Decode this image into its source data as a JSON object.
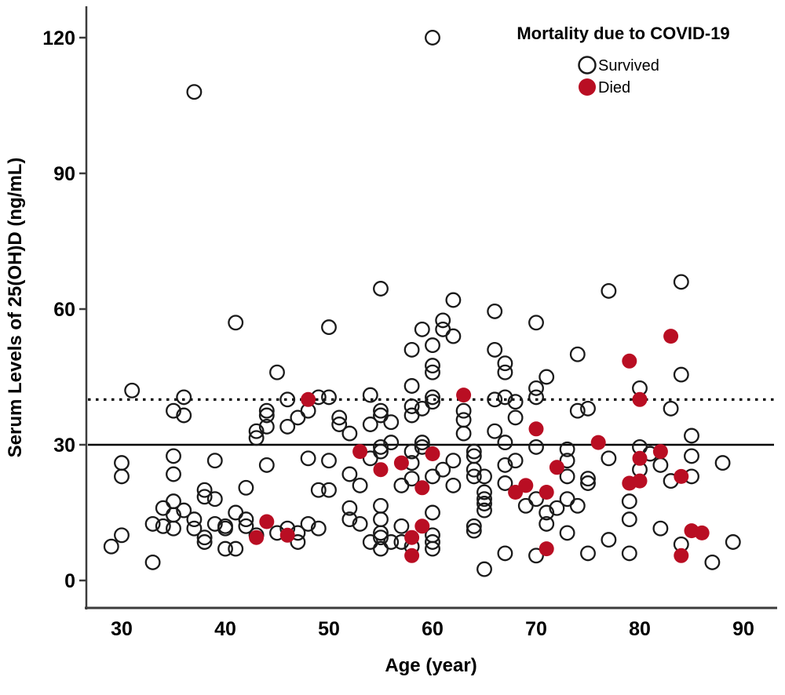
{
  "colors": {
    "died_fill": "#b90e23",
    "point_stroke": "#1a1a1a",
    "axis_line": "#3c3c3c",
    "background": "#ffffff"
  },
  "chart_data": {
    "type": "scatter",
    "title": "",
    "xlabel": "Age (year)",
    "ylabel": "Serum Levels of 25(OH)D (ng/mL)",
    "xlim": [
      27,
      93
    ],
    "ylim": [
      -6,
      126
    ],
    "x_ticks": [
      30,
      40,
      50,
      60,
      70,
      80,
      90
    ],
    "y_ticks": [
      0,
      30,
      60,
      90,
      120
    ],
    "grid": false,
    "legend": {
      "position": "top-right",
      "title": "Mortality due to COVID-19",
      "entries": [
        {
          "label": "Survived",
          "marker": "open-circle"
        },
        {
          "label": "Died",
          "marker": "filled-circle",
          "color": "#b90e23"
        }
      ]
    },
    "reference_lines": [
      {
        "value": 30,
        "style": "solid"
      },
      {
        "value": 40,
        "style": "dotted"
      }
    ],
    "series": [
      {
        "name": "Survived",
        "marker": "open-circle",
        "points": [
          [
            60,
            120
          ],
          [
            37,
            108
          ],
          [
            41,
            57
          ],
          [
            45,
            46
          ],
          [
            55,
            64.5
          ],
          [
            62,
            62
          ],
          [
            66,
            59.5
          ],
          [
            50,
            56
          ],
          [
            70,
            57
          ],
          [
            61,
            57.5
          ],
          [
            61,
            55.5
          ],
          [
            59,
            55.5
          ],
          [
            62,
            54
          ],
          [
            58,
            51
          ],
          [
            60,
            52
          ],
          [
            66,
            51
          ],
          [
            60,
            47.5
          ],
          [
            60,
            46
          ],
          [
            67,
            48
          ],
          [
            67,
            46
          ],
          [
            77,
            64
          ],
          [
            84,
            66
          ],
          [
            74,
            50
          ],
          [
            84,
            45.5
          ],
          [
            71,
            45
          ],
          [
            31,
            42
          ],
          [
            36,
            40.5
          ],
          [
            35,
            37.5
          ],
          [
            36,
            36.5
          ],
          [
            44,
            37.5
          ],
          [
            44,
            36.5
          ],
          [
            44,
            34
          ],
          [
            43,
            33
          ],
          [
            43,
            31.5
          ],
          [
            46,
            40
          ],
          [
            46,
            34
          ],
          [
            47,
            36
          ],
          [
            48,
            37.5
          ],
          [
            49,
            40.5
          ],
          [
            50,
            40.5
          ],
          [
            54,
            41
          ],
          [
            58,
            43
          ],
          [
            60,
            40.5
          ],
          [
            60,
            39.5
          ],
          [
            66,
            40
          ],
          [
            67,
            40.5
          ],
          [
            68,
            39.5
          ],
          [
            70,
            42.5
          ],
          [
            70,
            40.5
          ],
          [
            80,
            42.5
          ],
          [
            58,
            38.5
          ],
          [
            59,
            38
          ],
          [
            55,
            37.5
          ],
          [
            55,
            36.5
          ],
          [
            56,
            35
          ],
          [
            51,
            36
          ],
          [
            51,
            34.5
          ],
          [
            54,
            34.5
          ],
          [
            52,
            32.5
          ],
          [
            58,
            36.5
          ],
          [
            63,
            37.5
          ],
          [
            63,
            35.5
          ],
          [
            63,
            32.5
          ],
          [
            66,
            33
          ],
          [
            68,
            36
          ],
          [
            74,
            37.5
          ],
          [
            75,
            38
          ],
          [
            83,
            38
          ],
          [
            85,
            32
          ],
          [
            56,
            30.5
          ],
          [
            59,
            30.5
          ],
          [
            67,
            30.5
          ],
          [
            30,
            26
          ],
          [
            30,
            23
          ],
          [
            35,
            27.5
          ],
          [
            35,
            23.5
          ],
          [
            39,
            26.5
          ],
          [
            44,
            25.5
          ],
          [
            48,
            27
          ],
          [
            55,
            29.5
          ],
          [
            54,
            27
          ],
          [
            55,
            28.5
          ],
          [
            58,
            28.5
          ],
          [
            59,
            29.5
          ],
          [
            64,
            28.5
          ],
          [
            64,
            27.5
          ],
          [
            70,
            29.5
          ],
          [
            64,
            24.5
          ],
          [
            64,
            23
          ],
          [
            58,
            26
          ],
          [
            62,
            26.5
          ],
          [
            65,
            23
          ],
          [
            67,
            25.5
          ],
          [
            68,
            26.5
          ],
          [
            50,
            26.5
          ],
          [
            52,
            23.5
          ],
          [
            61,
            24.5
          ],
          [
            58,
            22.5
          ],
          [
            60,
            23
          ],
          [
            80,
            29.5
          ],
          [
            73,
            29
          ],
          [
            73,
            26.5
          ],
          [
            77,
            27
          ],
          [
            81,
            28
          ],
          [
            85,
            27.5
          ],
          [
            88,
            26
          ],
          [
            82,
            25.5
          ],
          [
            80,
            24.5
          ],
          [
            73,
            23
          ],
          [
            75,
            22.5
          ],
          [
            75,
            21.5
          ],
          [
            83,
            22
          ],
          [
            85,
            23
          ],
          [
            53,
            21
          ],
          [
            57,
            21
          ],
          [
            62,
            21
          ],
          [
            50,
            20
          ],
          [
            49,
            20
          ],
          [
            38,
            20
          ],
          [
            38,
            18.5
          ],
          [
            42,
            20.5
          ],
          [
            39,
            18
          ],
          [
            35,
            17.5
          ],
          [
            34,
            16
          ],
          [
            35,
            14.5
          ],
          [
            36,
            15.5
          ],
          [
            41,
            15
          ],
          [
            67,
            21.5
          ],
          [
            65,
            19.5
          ],
          [
            65,
            18
          ],
          [
            65,
            17
          ],
          [
            65,
            15.5
          ],
          [
            70,
            18
          ],
          [
            69,
            16.5
          ],
          [
            52,
            16
          ],
          [
            55,
            16.5
          ],
          [
            60,
            15
          ],
          [
            71,
            15
          ],
          [
            72,
            16
          ],
          [
            73,
            18
          ],
          [
            74,
            16.5
          ],
          [
            79,
            17.5
          ],
          [
            57,
            12
          ],
          [
            79,
            13.5
          ],
          [
            33,
            12.5
          ],
          [
            34,
            12
          ],
          [
            35,
            11.5
          ],
          [
            37,
            13.5
          ],
          [
            37,
            11.5
          ],
          [
            38,
            9.5
          ],
          [
            38,
            8.5
          ],
          [
            39,
            12.5
          ],
          [
            40,
            12
          ],
          [
            40,
            11.5
          ],
          [
            42,
            13.5
          ],
          [
            42,
            12
          ],
          [
            43,
            10
          ],
          [
            30,
            10
          ],
          [
            45,
            10.5
          ],
          [
            46,
            11.5
          ],
          [
            47,
            8.5
          ],
          [
            47,
            10.5
          ],
          [
            48,
            12.5
          ],
          [
            49,
            11.5
          ],
          [
            52,
            13.5
          ],
          [
            53,
            12.5
          ],
          [
            55,
            13.5
          ],
          [
            55,
            10.5
          ],
          [
            55,
            9.5
          ],
          [
            54,
            8.5
          ],
          [
            56,
            8.5
          ],
          [
            57,
            8.5
          ],
          [
            60,
            10
          ],
          [
            60,
            8.5
          ],
          [
            64,
            12
          ],
          [
            64,
            11
          ],
          [
            71,
            12.5
          ],
          [
            73,
            10.5
          ],
          [
            77,
            9
          ],
          [
            82,
            11.5
          ],
          [
            84,
            8
          ],
          [
            89,
            8.5
          ],
          [
            40,
            7
          ],
          [
            41,
            7
          ],
          [
            29,
            7.5
          ],
          [
            33,
            4
          ],
          [
            55,
            7
          ],
          [
            58,
            7.5
          ],
          [
            60,
            7
          ],
          [
            65,
            2.5
          ],
          [
            67,
            6
          ],
          [
            70,
            5.5
          ],
          [
            75,
            6
          ],
          [
            79,
            6
          ],
          [
            87,
            4
          ]
        ]
      },
      {
        "name": "Died",
        "marker": "filled-circle",
        "points": [
          [
            48,
            40
          ],
          [
            63,
            41
          ],
          [
            83,
            54
          ],
          [
            79,
            48.5
          ],
          [
            80,
            40
          ],
          [
            70,
            33.5
          ],
          [
            76,
            30.5
          ],
          [
            53,
            28.5
          ],
          [
            60,
            28
          ],
          [
            80,
            27
          ],
          [
            82,
            28.5
          ],
          [
            57,
            26
          ],
          [
            55,
            24.5
          ],
          [
            72,
            25
          ],
          [
            84,
            23
          ],
          [
            80,
            22
          ],
          [
            79,
            21.5
          ],
          [
            59,
            20.5
          ],
          [
            69,
            21
          ],
          [
            68,
            19.5
          ],
          [
            71,
            19.5
          ],
          [
            44,
            13
          ],
          [
            46,
            10
          ],
          [
            43,
            9.5
          ],
          [
            59,
            12
          ],
          [
            58,
            9.5
          ],
          [
            58,
            5.5
          ],
          [
            85,
            11
          ],
          [
            86,
            10.5
          ],
          [
            84,
            5.5
          ],
          [
            71,
            7
          ]
        ]
      }
    ]
  }
}
